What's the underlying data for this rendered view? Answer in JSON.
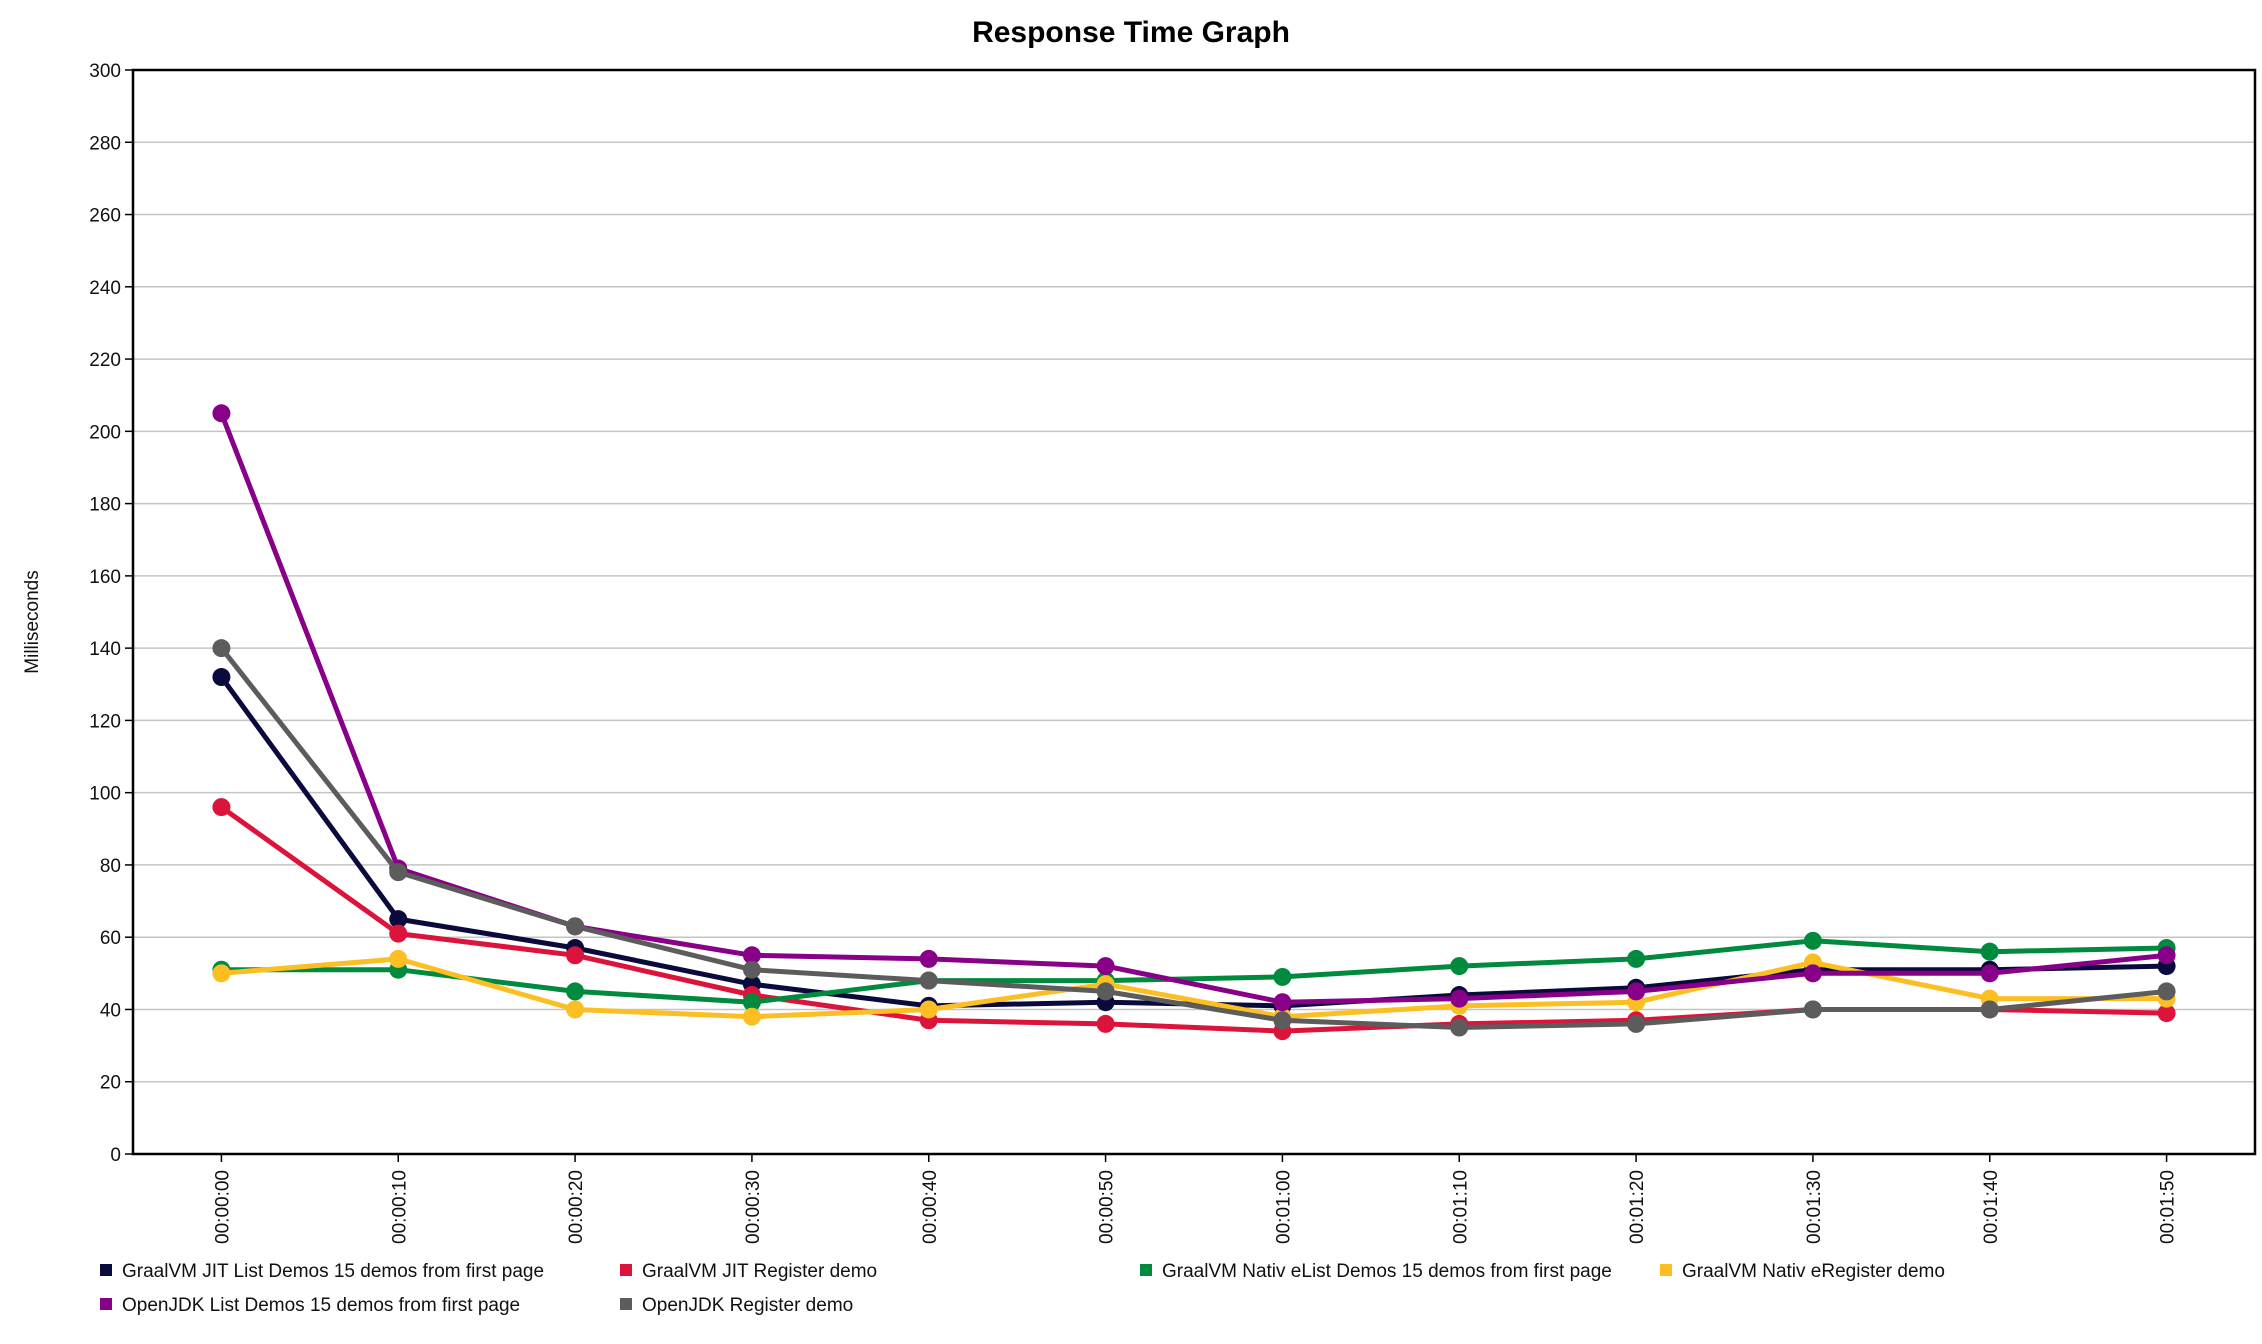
{
  "chart_data": {
    "type": "line",
    "title": "Response Time Graph",
    "xlabel": "",
    "ylabel": "Milliseconds",
    "ylim": [
      0,
      300
    ],
    "yticks": [
      0,
      20,
      40,
      60,
      80,
      100,
      120,
      140,
      160,
      180,
      200,
      220,
      240,
      260,
      280,
      300
    ],
    "grid": true,
    "legend_position": "bottom",
    "categories": [
      "00:00:00",
      "00:00:10",
      "00:00:20",
      "00:00:30",
      "00:00:40",
      "00:00:50",
      "00:01:00",
      "00:01:10",
      "00:01:20",
      "00:01:30",
      "00:01:40",
      "00:01:50"
    ],
    "series": [
      {
        "name": "GraalVM JIT List Demos 15 demos from first page",
        "color": "#0a0a3c",
        "values": [
          132,
          65,
          57,
          47,
          41,
          42,
          41,
          44,
          46,
          51,
          51,
          52
        ]
      },
      {
        "name": "GraalVM JIT Register demo",
        "color": "#dc143c",
        "values": [
          96,
          61,
          55,
          44,
          37,
          36,
          34,
          36,
          37,
          40,
          40,
          39
        ]
      },
      {
        "name": "GraalVM Nativ eList Demos 15 demos from first page",
        "color": "#008a3e",
        "values": [
          51,
          51,
          45,
          42,
          48,
          48,
          49,
          52,
          54,
          59,
          56,
          57
        ]
      },
      {
        "name": "GraalVM Nativ eRegister demo",
        "color": "#fbbf24",
        "values": [
          50,
          54,
          40,
          38,
          40,
          47,
          38,
          41,
          42,
          53,
          43,
          43
        ]
      },
      {
        "name": "OpenJDK List Demos 15 demos from first page",
        "color": "#880088",
        "values": [
          205,
          79,
          63,
          55,
          54,
          52,
          42,
          43,
          45,
          50,
          50,
          55
        ]
      },
      {
        "name": "OpenJDK Register demo",
        "color": "#5c5c5c",
        "values": [
          140,
          78,
          63,
          51,
          48,
          45,
          37,
          35,
          36,
          40,
          40,
          45
        ]
      }
    ]
  }
}
